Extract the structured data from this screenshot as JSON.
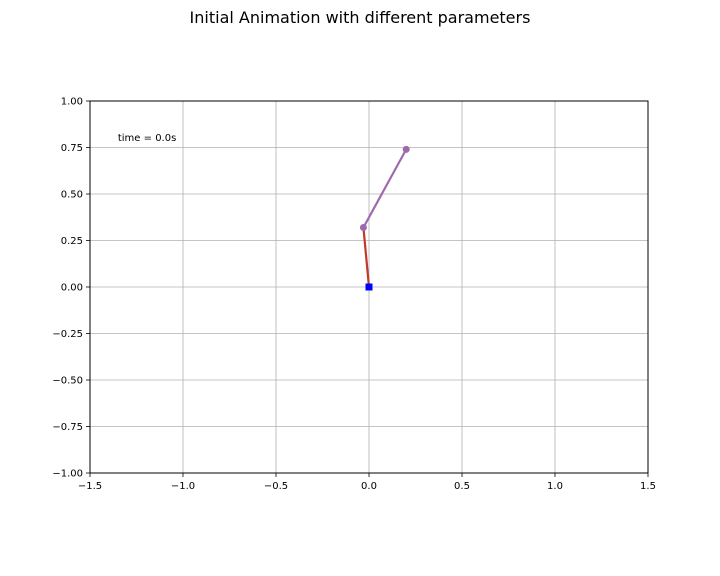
{
  "chart_data": {
    "type": "line",
    "title": "Initial Animation with different parameters",
    "xlabel": "",
    "ylabel": "",
    "xlim": [
      -1.5,
      1.5
    ],
    "ylim": [
      -1.0,
      1.0
    ],
    "xticks": [
      -1.5,
      -1.0,
      -0.5,
      0.0,
      0.5,
      1.0,
      1.5
    ],
    "yticks": [
      -1.0,
      -0.75,
      -0.5,
      -0.25,
      0.0,
      0.25,
      0.5,
      0.75,
      1.0
    ],
    "xtick_labels": [
      "−1.5",
      "−1.0",
      "−0.5",
      "0.0",
      "0.5",
      "1.0",
      "1.5"
    ],
    "ytick_labels": [
      "−1.00",
      "−0.75",
      "−0.50",
      "−0.25",
      "0.00",
      "0.25",
      "0.50",
      "0.75",
      "1.00"
    ],
    "grid": true,
    "annotation": "time = 0.0s",
    "pivot": {
      "x": 0.0,
      "y": 0.0,
      "color": "#0000ff",
      "marker": "square"
    },
    "series": [
      {
        "x": [
          0.0,
          -0.03
        ],
        "y": [
          0.0,
          0.32
        ],
        "color": "#c0392b"
      },
      {
        "x": [
          -0.03,
          0.2
        ],
        "y": [
          0.32,
          0.74
        ],
        "color": "#9e6aad",
        "markers": true
      }
    ]
  }
}
